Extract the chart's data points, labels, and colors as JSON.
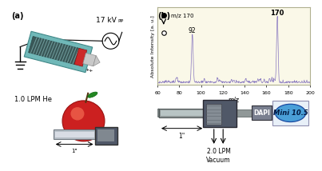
{
  "panel_a_label": "(a)",
  "panel_b_label": "(b)",
  "background_color": "#ffffff",
  "panel_b_bg": "#faf8e8",
  "panel_b_border": "#b0b090",
  "spectrum_color": "#8878c0",
  "xlabel": "m/z",
  "ylabel": "Absolute Intensity [a. u.]",
  "xmin": 60,
  "xmax": 200,
  "peak_92_label": "92",
  "peak_170_label": "170",
  "legend_dot_label": "m/z 170",
  "text_17kv": "17 kV",
  "text_pp": "PP",
  "text_1lpm": "1.0 LPM He",
  "text_2lpm": "2.0 LPM\nVacuum",
  "text_dapi": "DAPI",
  "text_mini": "Mini 10.5",
  "mini_bg": "#4a9fd8",
  "mini_text_color": "#001840",
  "mini_box_bg": "#e8f0f8",
  "mini_box_border": "#9090b0",
  "dapi_bg": "#7a8090",
  "dapi_text_color": "#ffffff",
  "device_dark": "#505868",
  "device_mid": "#707880",
  "tube_outer": "#70b8b8",
  "tube_inner": "#3a5858",
  "red_part": "#cc2828",
  "needle_color": "#c8c8c8"
}
